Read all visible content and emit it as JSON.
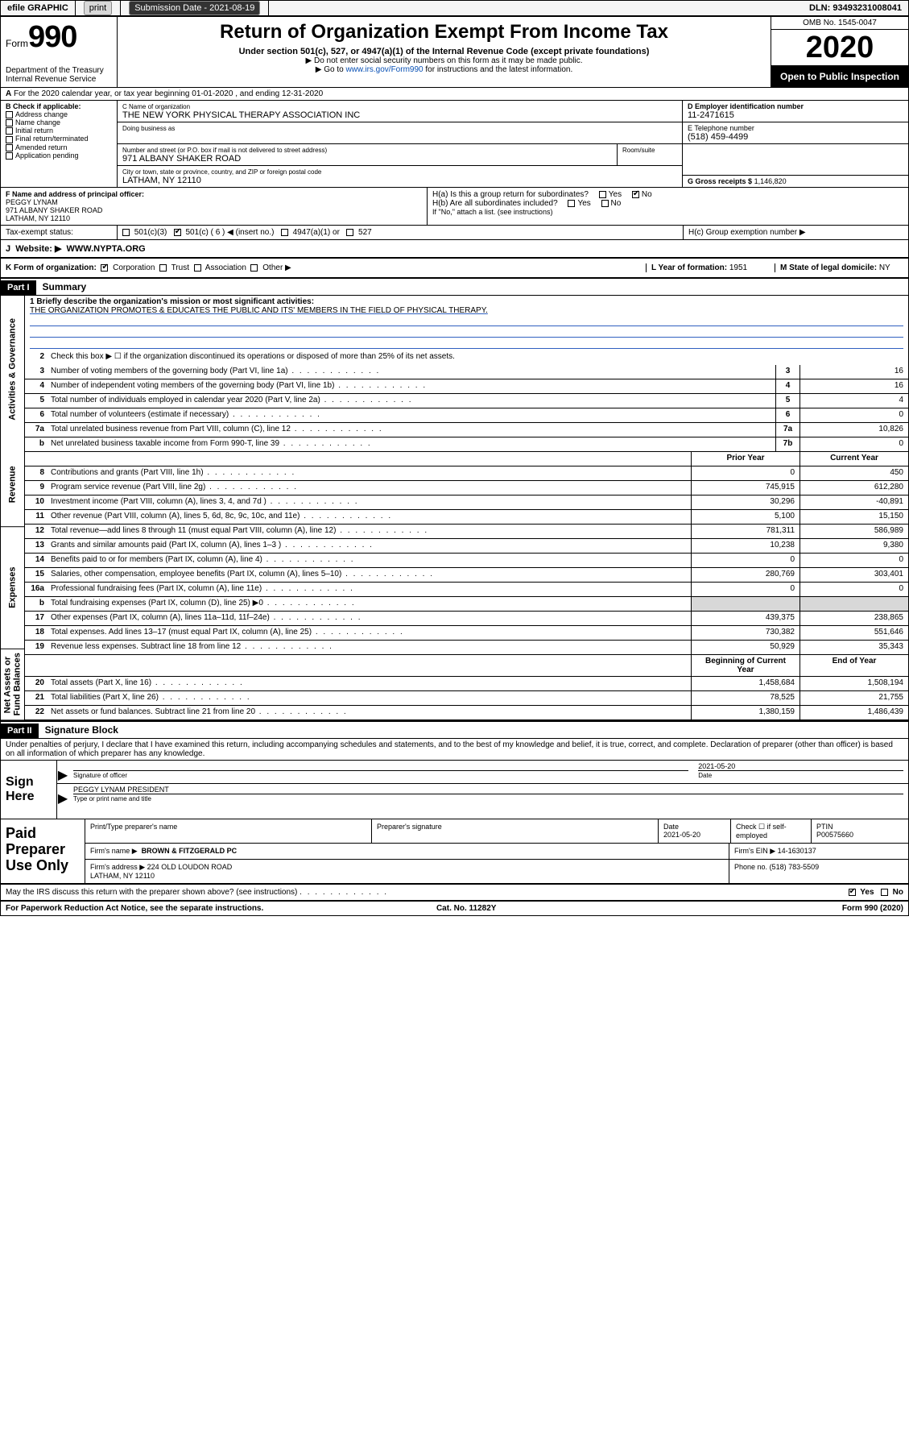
{
  "topbar": {
    "efile_label": "efile GRAPHIC",
    "print_label": "print",
    "submission_label": "Submission Date - 2021-08-19",
    "dln_label": "DLN: 93493231008041"
  },
  "header": {
    "form_label": "Form",
    "form_number": "990",
    "dept": "Department of the Treasury\nInternal Revenue Service",
    "title": "Return of Organization Exempt From Income Tax",
    "subtitle": "Under section 501(c), 527, or 4947(a)(1) of the Internal Revenue Code (except private foundations)",
    "note1": "▶ Do not enter social security numbers on this form as it may be made public.",
    "note2_pre": "▶ Go to ",
    "note2_link": "www.irs.gov/Form990",
    "note2_post": " for instructions and the latest information.",
    "omb": "OMB No. 1545-0047",
    "year": "2020",
    "open": "Open to Public Inspection"
  },
  "A": {
    "text": "For the 2020 calendar year, or tax year beginning 01-01-2020   , and ending 12-31-2020"
  },
  "B": {
    "label": "B Check if applicable:",
    "items": [
      "Address change",
      "Name change",
      "Initial return",
      "Final return/terminated",
      "Amended return",
      "Application pending"
    ]
  },
  "C": {
    "name_label": "C Name of organization",
    "name": "THE NEW YORK PHYSICAL THERAPY ASSOCIATION INC",
    "dba_label": "Doing business as",
    "dba": "",
    "addr_label": "Number and street (or P.O. box if mail is not delivered to street address)",
    "room_label": "Room/suite",
    "addr": "971 ALBANY SHAKER ROAD",
    "city_label": "City or town, state or province, country, and ZIP or foreign postal code",
    "city": "LATHAM, NY  12110"
  },
  "D": {
    "label": "D Employer identification number",
    "value": "11-2471615"
  },
  "E": {
    "label": "E Telephone number",
    "value": "(518) 459-4499"
  },
  "G": {
    "label": "G Gross receipts $",
    "value": "1,146,820"
  },
  "F": {
    "label": "F  Name and address of principal officer:",
    "name": "PEGGY LYNAM",
    "addr": "971 ALBANY SHAKER ROAD\nLATHAM, NY  12110"
  },
  "H": {
    "a_label": "H(a)  Is this a group return for subordinates?",
    "a_yes": "Yes",
    "a_no": "No",
    "b_label": "H(b)  Are all subordinates included?",
    "b_yes": "Yes",
    "b_no": "No",
    "b_note": "If \"No,\" attach a list. (see instructions)",
    "c_label": "H(c)  Group exemption number ▶"
  },
  "I": {
    "label": "Tax-exempt status:",
    "opts": [
      "501(c)(3)",
      "501(c) ( 6 ) ◀ (insert no.)",
      "4947(a)(1) or",
      "527"
    ]
  },
  "J": {
    "label": "Website: ▶",
    "value": "WWW.NYPTA.ORG"
  },
  "K": {
    "label": "K Form of organization:",
    "opts": [
      "Corporation",
      "Trust",
      "Association",
      "Other ▶"
    ]
  },
  "L": {
    "label": "L Year of formation:",
    "value": "1951"
  },
  "M": {
    "label": "M State of legal domicile:",
    "value": "NY"
  },
  "part1": {
    "label": "Part I",
    "title": "Summary",
    "l1_label": "1  Briefly describe the organization's mission or most significant activities:",
    "l1_text": "THE ORGANIZATION PROMOTES & EDUCATES THE PUBLIC AND ITS' MEMBERS IN THE FIELD OF PHYSICAL THERAPY.",
    "l2": "Check this box ▶ ☐  if the organization discontinued its operations or disposed of more than 25% of its net assets.",
    "sidebar": [
      "Activities & Governance",
      "Revenue",
      "Expenses",
      "Net Assets or Fund Balances"
    ],
    "lines_gov": [
      {
        "n": "3",
        "t": "Number of voting members of the governing body (Part VI, line 1a)",
        "box": "3",
        "v": "16"
      },
      {
        "n": "4",
        "t": "Number of independent voting members of the governing body (Part VI, line 1b)",
        "box": "4",
        "v": "16"
      },
      {
        "n": "5",
        "t": "Total number of individuals employed in calendar year 2020 (Part V, line 2a)",
        "box": "5",
        "v": "4"
      },
      {
        "n": "6",
        "t": "Total number of volunteers (estimate if necessary)",
        "box": "6",
        "v": "0"
      },
      {
        "n": "7a",
        "t": "Total unrelated business revenue from Part VIII, column (C), line 12",
        "box": "7a",
        "v": "10,826"
      },
      {
        "n": "b",
        "t": "Net unrelated business taxable income from Form 990-T, line 39",
        "box": "7b",
        "v": "0"
      }
    ],
    "head_prior": "Prior Year",
    "head_current": "Current Year",
    "lines_rev": [
      {
        "n": "8",
        "t": "Contributions and grants (Part VIII, line 1h)",
        "p": "0",
        "c": "450"
      },
      {
        "n": "9",
        "t": "Program service revenue (Part VIII, line 2g)",
        "p": "745,915",
        "c": "612,280"
      },
      {
        "n": "10",
        "t": "Investment income (Part VIII, column (A), lines 3, 4, and 7d )",
        "p": "30,296",
        "c": "-40,891"
      },
      {
        "n": "11",
        "t": "Other revenue (Part VIII, column (A), lines 5, 6d, 8c, 9c, 10c, and 11e)",
        "p": "5,100",
        "c": "15,150"
      },
      {
        "n": "12",
        "t": "Total revenue—add lines 8 through 11 (must equal Part VIII, column (A), line 12)",
        "p": "781,311",
        "c": "586,989"
      }
    ],
    "lines_exp": [
      {
        "n": "13",
        "t": "Grants and similar amounts paid (Part IX, column (A), lines 1–3 )",
        "p": "10,238",
        "c": "9,380"
      },
      {
        "n": "14",
        "t": "Benefits paid to or for members (Part IX, column (A), line 4)",
        "p": "0",
        "c": "0"
      },
      {
        "n": "15",
        "t": "Salaries, other compensation, employee benefits (Part IX, column (A), lines 5–10)",
        "p": "280,769",
        "c": "303,401"
      },
      {
        "n": "16a",
        "t": "Professional fundraising fees (Part IX, column (A), line 11e)",
        "p": "0",
        "c": "0"
      },
      {
        "n": "b",
        "t": "Total fundraising expenses (Part IX, column (D), line 25) ▶0",
        "p": "",
        "c": "",
        "grey": true
      },
      {
        "n": "17",
        "t": "Other expenses (Part IX, column (A), lines 11a–11d, 11f–24e)",
        "p": "439,375",
        "c": "238,865"
      },
      {
        "n": "18",
        "t": "Total expenses. Add lines 13–17 (must equal Part IX, column (A), line 25)",
        "p": "730,382",
        "c": "551,646"
      },
      {
        "n": "19",
        "t": "Revenue less expenses. Subtract line 18 from line 12",
        "p": "50,929",
        "c": "35,343"
      }
    ],
    "head2_prior": "Beginning of Current Year",
    "head2_current": "End of Year",
    "lines_net": [
      {
        "n": "20",
        "t": "Total assets (Part X, line 16)",
        "p": "1,458,684",
        "c": "1,508,194"
      },
      {
        "n": "21",
        "t": "Total liabilities (Part X, line 26)",
        "p": "78,525",
        "c": "21,755"
      },
      {
        "n": "22",
        "t": "Net assets or fund balances. Subtract line 21 from line 20",
        "p": "1,380,159",
        "c": "1,486,439"
      }
    ]
  },
  "part2": {
    "label": "Part II",
    "title": "Signature Block",
    "perjury": "Under penalties of perjury, I declare that I have examined this return, including accompanying schedules and statements, and to the best of my knowledge and belief, it is true, correct, and complete. Declaration of preparer (other than officer) is based on all information of which preparer has any knowledge.",
    "sign_label": "Sign Here",
    "sig_officer": "Signature of officer",
    "sig_date": "2021-05-20",
    "date_label": "Date",
    "typed_name": "PEGGY LYNAM  PRESIDENT",
    "typed_label": "Type or print name and title",
    "paid_label": "Paid Preparer Use Only",
    "prep_name_label": "Print/Type preparer's name",
    "prep_sig_label": "Preparer's signature",
    "prep_date_label": "Date",
    "prep_date": "2021-05-20",
    "check_label": "Check ☐ if self-employed",
    "ptin_label": "PTIN",
    "ptin": "P00575660",
    "firm_name_label": "Firm's name    ▶",
    "firm_name": "BROWN & FITZGERALD PC",
    "firm_ein_label": "Firm's EIN ▶",
    "firm_ein": "14-1630137",
    "firm_addr_label": "Firm's address ▶",
    "firm_addr": "224 OLD LOUDON ROAD\nLATHAM, NY  12110",
    "phone_label": "Phone no.",
    "phone": "(518) 783-5509",
    "discuss": "May the IRS discuss this return with the preparer shown above? (see instructions)",
    "discuss_yes": "Yes",
    "discuss_no": "No"
  },
  "footer": {
    "left": "For Paperwork Reduction Act Notice, see the separate instructions.",
    "mid": "Cat. No. 11282Y",
    "right": "Form 990 (2020)"
  }
}
